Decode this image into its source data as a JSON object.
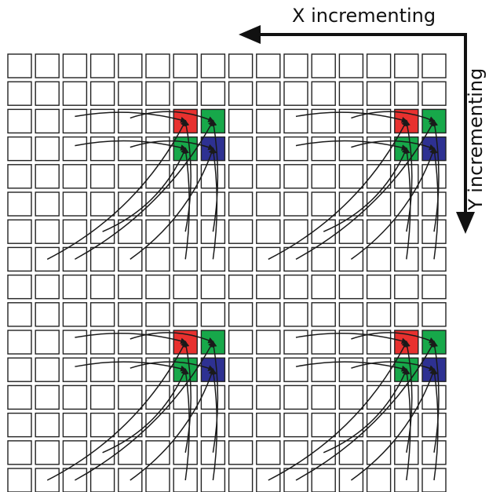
{
  "x_axis": {
    "label": "X incrementing"
  },
  "y_axis": {
    "label": "Y incrementing"
  },
  "grid": {
    "rows": 16,
    "cols": 16
  },
  "colors": {
    "red": "#e8312f",
    "green": "#17a84a",
    "blue": "#2e3192",
    "line": "#1a1a1a",
    "cell_stroke": "#222222",
    "background": "#ffffff"
  },
  "colored_blocks": [
    {
      "name": "block-top-left",
      "red": [
        2,
        6
      ],
      "green_a": [
        2,
        7
      ],
      "green_b": [
        3,
        6
      ],
      "blue": [
        3,
        7
      ]
    },
    {
      "name": "block-top-right",
      "red": [
        2,
        14
      ],
      "green_a": [
        2,
        15
      ],
      "green_b": [
        3,
        14
      ],
      "blue": [
        3,
        15
      ]
    },
    {
      "name": "block-bottom-left",
      "red": [
        10,
        6
      ],
      "green_a": [
        10,
        7
      ],
      "green_b": [
        11,
        6
      ],
      "blue": [
        11,
        7
      ]
    },
    {
      "name": "block-bottom-right",
      "red": [
        10,
        14
      ],
      "green_a": [
        10,
        15
      ],
      "green_b": [
        11,
        14
      ],
      "blue": [
        11,
        15
      ]
    }
  ]
}
